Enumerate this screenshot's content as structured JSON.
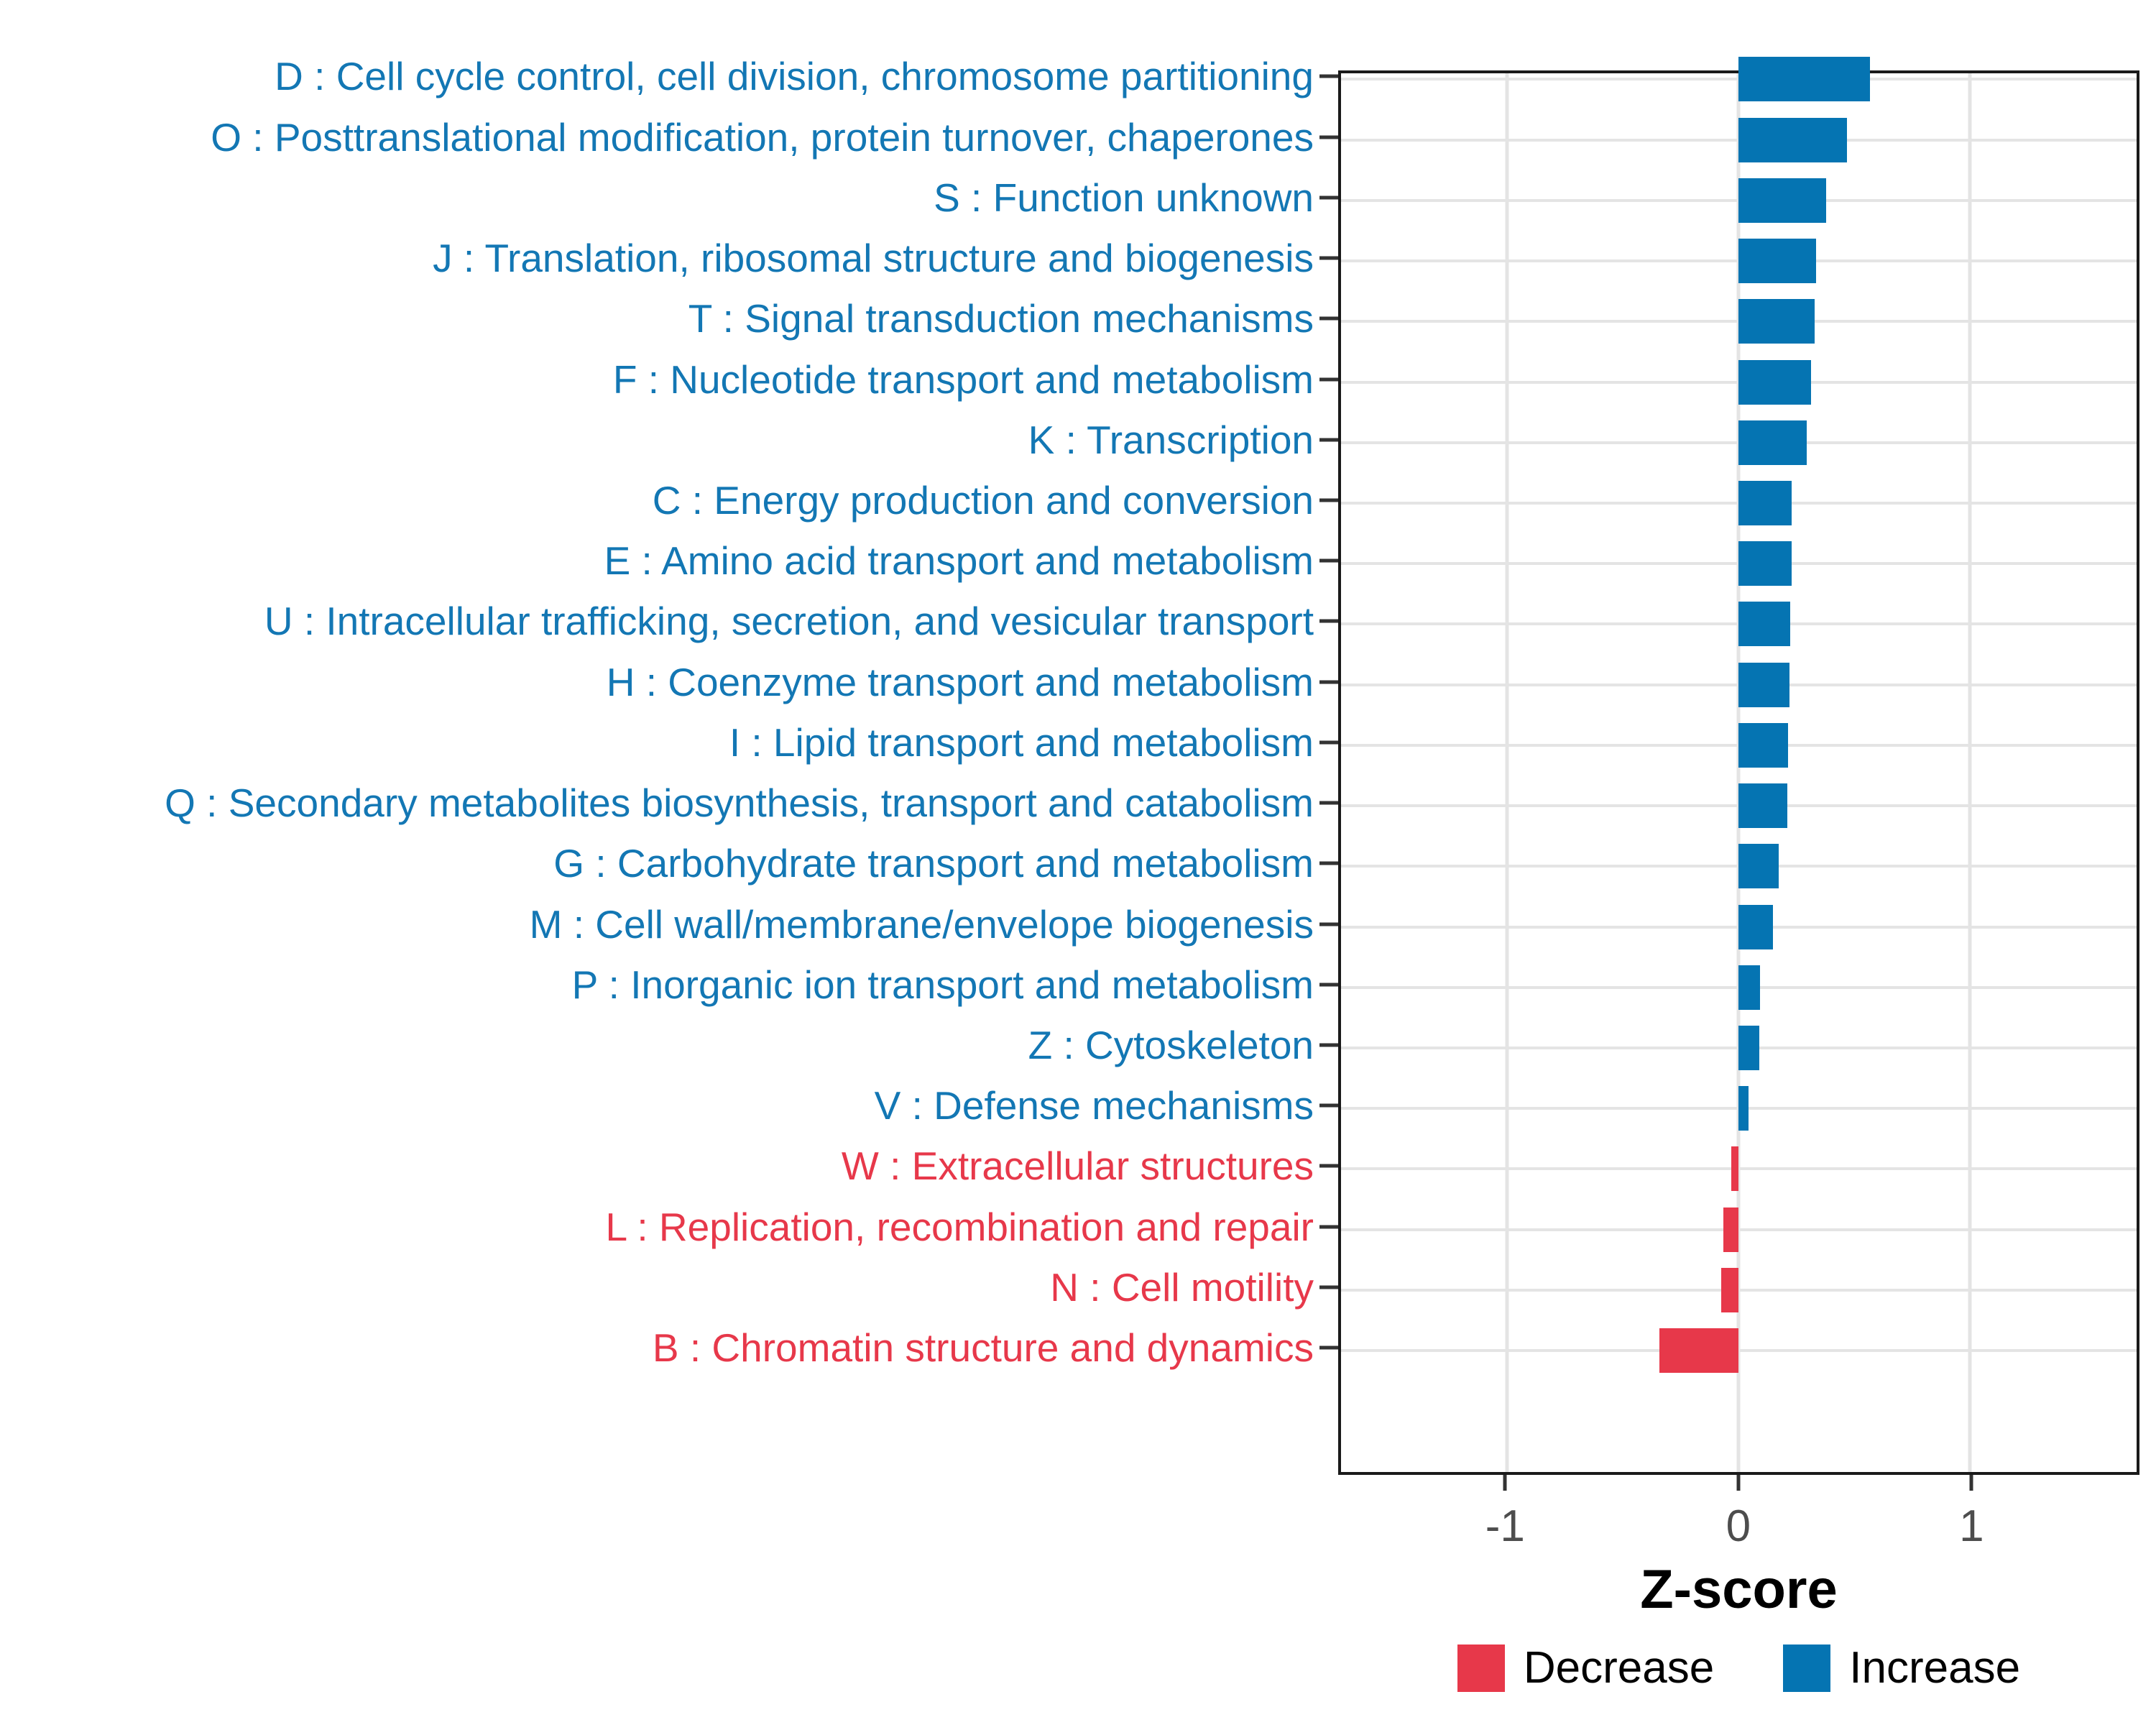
{
  "axis": {
    "xlabel": "Z-score",
    "ticks": [
      -1,
      0,
      1
    ],
    "tick_labels": [
      "-1",
      "0",
      "1"
    ],
    "xlim": [
      -1.716,
      1.72
    ]
  },
  "legend": {
    "items": [
      {
        "label": "Decrease",
        "color": "#e7384a"
      },
      {
        "label": "Increase",
        "color": "#0574b2"
      }
    ]
  },
  "colors": {
    "increase_bar": "#0574b2",
    "decrease_bar": "#e7384a",
    "increase_label": "#1377b4",
    "decrease_label": "#e7384a",
    "grid": "#e4e4e4",
    "panel_border": "#1a1a1a",
    "axis_text": "#4d4d4d"
  },
  "chart_data": {
    "type": "bar",
    "orientation": "horizontal",
    "title": "",
    "xlabel": "Z-score",
    "ylabel": "",
    "xlim": [
      -1.716,
      1.72
    ],
    "grid": "major-only",
    "legend_position": "bottom",
    "categories": [
      "D : Cell cycle control, cell division, chromosome partitioning",
      "O : Posttranslational modification, protein turnover, chaperones",
      "S : Function unknown",
      "J : Translation, ribosomal structure and biogenesis",
      "T : Signal transduction mechanisms",
      "F : Nucleotide transport and metabolism",
      "K : Transcription",
      "C : Energy production and conversion",
      "E : Amino acid transport and metabolism",
      "U : Intracellular trafficking, secretion, and vesicular transport",
      "H : Coenzyme transport and metabolism",
      "I : Lipid transport and metabolism",
      "Q : Secondary metabolites biosynthesis, transport and catabolism",
      "G : Carbohydrate transport and metabolism",
      "M : Cell wall/membrane/envelope biogenesis",
      "P : Inorganic ion transport and metabolism",
      "Z : Cytoskeleton",
      "V : Defense mechanisms",
      "W : Extracellular structures",
      "L : Replication, recombination and repair",
      "N : Cell motility",
      "B : Chromatin structure and dynamics"
    ],
    "values": [
      0.57,
      0.47,
      0.38,
      0.335,
      0.33,
      0.315,
      0.295,
      0.23,
      0.23,
      0.225,
      0.22,
      0.215,
      0.21,
      0.175,
      0.15,
      0.095,
      0.09,
      0.045,
      -0.03,
      -0.065,
      -0.075,
      -0.34
    ],
    "groups": [
      "Increase",
      "Increase",
      "Increase",
      "Increase",
      "Increase",
      "Increase",
      "Increase",
      "Increase",
      "Increase",
      "Increase",
      "Increase",
      "Increase",
      "Increase",
      "Increase",
      "Increase",
      "Increase",
      "Increase",
      "Increase",
      "Decrease",
      "Decrease",
      "Decrease",
      "Decrease"
    ]
  }
}
